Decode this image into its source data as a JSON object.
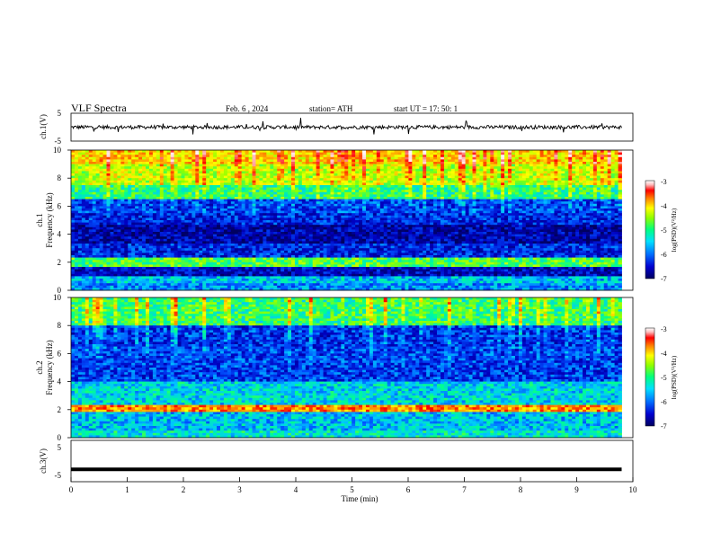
{
  "header": {
    "title": "VLF  Spectra",
    "date": "Feb. 6  , 2024",
    "station": "station= ATH",
    "start": "start  UT  =    17: 50: 1"
  },
  "colorbar_top": {
    "label": "log(PSD)(V²/Hz)",
    "ticks": [
      "-3",
      "-4",
      "-5",
      "-6",
      "-7"
    ]
  },
  "colorbar_bottom": {
    "label": "log(PSD)(V²/Hz)",
    "ticks": [
      "-3",
      "-4",
      "-5",
      "-6",
      "-7"
    ]
  },
  "colors": {
    "colormap": [
      "#000060",
      "#0000c0",
      "#0050ff",
      "#00c8ff",
      "#00ff90",
      "#90ff00",
      "#ffff00",
      "#ff9000",
      "#ff0000",
      "#ffd0d0",
      "#ffffff"
    ]
  },
  "chart_data": [
    {
      "type": "line",
      "id": "ch1",
      "ylabel": "ch.1(V)",
      "ylim": [
        -5,
        5
      ],
      "yticks": [
        "5",
        "-5"
      ],
      "xlim": [
        0,
        10
      ],
      "series": [
        {
          "x": [
            0,
            9.8
          ],
          "y": [
            0,
            0
          ]
        }
      ]
    },
    {
      "type": "heatmap",
      "id": "spec1",
      "ylabel": "ch.1\nFrequency (kHz)",
      "ylim": [
        0,
        10
      ],
      "yticks": [
        "0",
        "2",
        "4",
        "6",
        "8",
        "10"
      ],
      "xlim": [
        0,
        10
      ],
      "data_xmax": 9.8,
      "zlim": [
        -7,
        -3
      ],
      "bands": [
        {
          "from": 0,
          "to": 0.5,
          "level": -6.0
        },
        {
          "from": 0.5,
          "to": 1.0,
          "level": -5.8
        },
        {
          "from": 1.0,
          "to": 1.7,
          "level": -6.6
        },
        {
          "from": 1.7,
          "to": 2.4,
          "level": -5.2
        },
        {
          "from": 2.4,
          "to": 3.4,
          "level": -6.4
        },
        {
          "from": 3.4,
          "to": 4.6,
          "level": -6.7
        },
        {
          "from": 4.6,
          "to": 5.5,
          "level": -6.4
        },
        {
          "from": 5.5,
          "to": 6.5,
          "level": -6.3
        },
        {
          "from": 6.5,
          "to": 7.5,
          "level": -5.4
        },
        {
          "from": 7.5,
          "to": 9.0,
          "level": -4.9
        },
        {
          "from": 9.0,
          "to": 10,
          "level": -4.6
        }
      ]
    },
    {
      "type": "heatmap",
      "id": "spec2",
      "ylabel": "ch.2\nFrequency (kHz)",
      "ylim": [
        0,
        10
      ],
      "yticks": [
        "0",
        "2",
        "4",
        "6",
        "8",
        "10"
      ],
      "xlim": [
        0,
        10
      ],
      "data_xmax": 9.8,
      "zlim": [
        -7,
        -3
      ],
      "bands": [
        {
          "from": 0,
          "to": 0.5,
          "level": -5.6
        },
        {
          "from": 0.5,
          "to": 1.8,
          "level": -5.8
        },
        {
          "from": 1.8,
          "to": 2.3,
          "level": -4.2
        },
        {
          "from": 2.3,
          "to": 4.0,
          "level": -5.7
        },
        {
          "from": 4.0,
          "to": 6.5,
          "level": -6.3
        },
        {
          "from": 6.5,
          "to": 8.0,
          "level": -6.4
        },
        {
          "from": 8.0,
          "to": 10,
          "level": -5.4
        }
      ]
    },
    {
      "type": "line",
      "id": "ch3",
      "ylabel": "ch.3(V)",
      "ylim": [
        -5,
        5
      ],
      "yticks": [
        "5",
        "-5"
      ],
      "xlim": [
        0,
        10
      ],
      "xlabel": "Time  (min)",
      "xticks": [
        "0",
        "1",
        "2",
        "3",
        "4",
        "5",
        "6",
        "7",
        "8",
        "9",
        "10"
      ],
      "series": [
        {
          "x": [
            0,
            9.8
          ],
          "y": [
            -2,
            -2
          ]
        }
      ]
    }
  ]
}
